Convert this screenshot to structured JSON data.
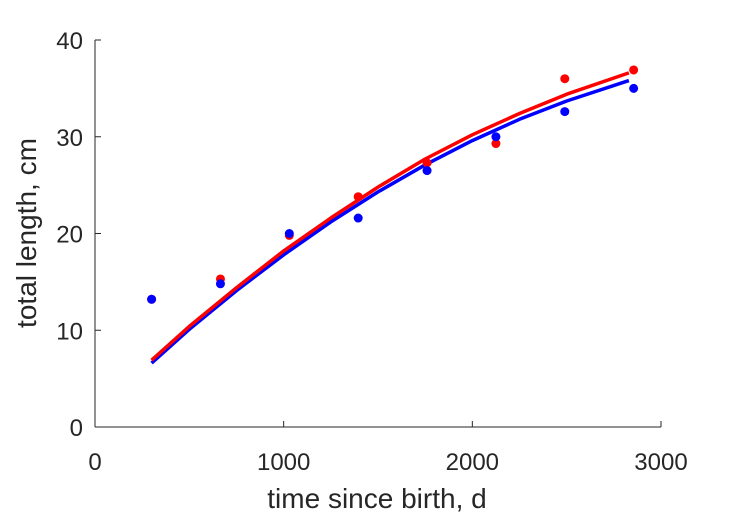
{
  "chart_data": {
    "type": "scatter",
    "title": "",
    "xlabel": "time since birth, d",
    "ylabel": "total length, cm",
    "xlim": [
      0,
      3000
    ],
    "ylim": [
      0,
      40
    ],
    "xticks": [
      0,
      1000,
      2000,
      3000
    ],
    "yticks": [
      0,
      10,
      20,
      30,
      40
    ],
    "grid": false,
    "series": [
      {
        "color": "#ff0000",
        "points": [
          {
            "x": 300,
            "y": 13.2
          },
          {
            "x": 665,
            "y": 15.3
          },
          {
            "x": 1030,
            "y": 19.8
          },
          {
            "x": 1395,
            "y": 23.8
          },
          {
            "x": 1760,
            "y": 27.3
          },
          {
            "x": 2125,
            "y": 29.3
          },
          {
            "x": 2490,
            "y": 36.0
          },
          {
            "x": 2855,
            "y": 36.9
          }
        ],
        "curve": [
          {
            "x": 300,
            "y": 6.9
          },
          {
            "x": 500,
            "y": 10.4
          },
          {
            "x": 750,
            "y": 14.4
          },
          {
            "x": 1000,
            "y": 18.2
          },
          {
            "x": 1250,
            "y": 21.6
          },
          {
            "x": 1500,
            "y": 24.8
          },
          {
            "x": 1750,
            "y": 27.7
          },
          {
            "x": 2000,
            "y": 30.2
          },
          {
            "x": 2250,
            "y": 32.4
          },
          {
            "x": 2500,
            "y": 34.4
          },
          {
            "x": 2830,
            "y": 36.6
          }
        ]
      },
      {
        "color": "#0000ff",
        "points": [
          {
            "x": 300,
            "y": 13.2
          },
          {
            "x": 665,
            "y": 14.8
          },
          {
            "x": 1030,
            "y": 20.0
          },
          {
            "x": 1395,
            "y": 21.6
          },
          {
            "x": 1760,
            "y": 26.5
          },
          {
            "x": 2125,
            "y": 30.0
          },
          {
            "x": 2490,
            "y": 32.6
          },
          {
            "x": 2855,
            "y": 35.0
          }
        ],
        "curve": [
          {
            "x": 300,
            "y": 6.6
          },
          {
            "x": 500,
            "y": 10.1
          },
          {
            "x": 750,
            "y": 14.1
          },
          {
            "x": 1000,
            "y": 17.8
          },
          {
            "x": 1250,
            "y": 21.2
          },
          {
            "x": 1500,
            "y": 24.3
          },
          {
            "x": 1750,
            "y": 27.1
          },
          {
            "x": 2000,
            "y": 29.6
          },
          {
            "x": 2250,
            "y": 31.8
          },
          {
            "x": 2500,
            "y": 33.7
          },
          {
            "x": 2830,
            "y": 35.8
          }
        ]
      }
    ]
  }
}
